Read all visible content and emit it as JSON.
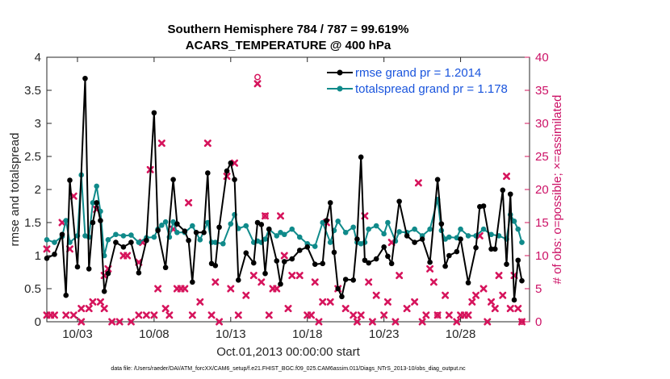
{
  "chart_data": {
    "type": "line",
    "title_line1": "Southern Hemisphere 784 / 787 = 99.619%",
    "title_line2": "ACARS_TEMPERATURE @ 400 hPa",
    "ylabel": "rmse and totalspread",
    "ylabel_right": "# of obs: o=possible; ×=assimilated",
    "xlabel": "Oct.01,2013 00:00:00 start",
    "footnote": "data file: /Users/raeder/DAI/ATM_forcXX/CAM6_setup/f.e21.FHIST_BGC.f09_025.CAM6assim.011/Diags_NTrS_2013-10/obs_diag_output.nc",
    "xlim": [
      1.0,
      32.5
    ],
    "ylim": [
      0,
      4
    ],
    "ylim_right": [
      0,
      40
    ],
    "yticks": [
      0,
      0.5,
      1,
      1.5,
      2,
      2.5,
      3,
      3.5,
      4
    ],
    "yticklabels": [
      "0",
      "0.5",
      "1",
      "1.5",
      "2",
      "2.5",
      "3",
      "3.5",
      "4"
    ],
    "yticks_right": [
      0,
      5,
      10,
      15,
      20,
      25,
      30,
      35,
      40
    ],
    "yticklabels_right": [
      "0",
      "5",
      "10",
      "15",
      "20",
      "25",
      "30",
      "35",
      "40"
    ],
    "xticks": [
      3,
      8,
      13,
      18,
      23,
      28
    ],
    "xticklabels": [
      "10/03",
      "10/08",
      "10/13",
      "10/18",
      "10/23",
      "10/28"
    ],
    "colors": {
      "rmse": "#000000",
      "spread": "#0f8a8a",
      "obs": "#d6145c",
      "legend_text": "#1a55dd"
    },
    "series": [
      {
        "name": "rmse",
        "legend": "rmse grand pr = 1.2014",
        "points": [
          [
            1.0,
            0.96
          ],
          [
            1.5,
            1.02
          ],
          [
            2.0,
            1.32
          ],
          [
            2.25,
            0.4
          ],
          [
            2.5,
            2.14
          ],
          [
            3.0,
            0.83
          ],
          [
            3.5,
            3.68
          ],
          [
            3.75,
            0.8
          ],
          [
            4.0,
            1.5
          ],
          [
            4.25,
            1.8
          ],
          [
            4.5,
            1.53
          ],
          [
            4.75,
            0.46
          ],
          [
            5.0,
            0.73
          ],
          [
            5.5,
            1.2
          ],
          [
            6.0,
            1.13
          ],
          [
            6.5,
            1.2
          ],
          [
            7.0,
            0.74
          ],
          [
            7.5,
            1.23
          ],
          [
            8.0,
            3.16
          ],
          [
            8.25,
            1.38
          ],
          [
            8.75,
            0.82
          ],
          [
            9.25,
            2.15
          ],
          [
            9.5,
            1.48
          ],
          [
            10.0,
            1.37
          ],
          [
            10.25,
            1.23
          ],
          [
            10.5,
            0.6
          ],
          [
            10.75,
            1.35
          ],
          [
            11.25,
            1.35
          ],
          [
            11.5,
            2.25
          ],
          [
            11.75,
            0.88
          ],
          [
            12.0,
            0.85
          ],
          [
            12.25,
            1.43
          ],
          [
            12.75,
            2.28
          ],
          [
            13.0,
            2.4
          ],
          [
            13.25,
            2.15
          ],
          [
            13.5,
            0.63
          ],
          [
            14.0,
            1.04
          ],
          [
            14.5,
            0.89
          ],
          [
            14.75,
            1.5
          ],
          [
            15.0,
            1.47
          ],
          [
            15.25,
            0.73
          ],
          [
            15.5,
            1.4
          ],
          [
            16.0,
            0.92
          ],
          [
            16.25,
            0.57
          ],
          [
            16.5,
            0.91
          ],
          [
            17.0,
            0.95
          ],
          [
            17.5,
            1.08
          ],
          [
            18.0,
            1.13
          ],
          [
            18.5,
            0.87
          ],
          [
            19.0,
            0.88
          ],
          [
            19.25,
            1.53
          ],
          [
            19.5,
            1.8
          ],
          [
            19.75,
            1.05
          ],
          [
            20.0,
            0.5
          ],
          [
            20.25,
            0.38
          ],
          [
            20.5,
            0.64
          ],
          [
            21.0,
            0.63
          ],
          [
            21.25,
            1.25
          ],
          [
            21.5,
            2.49
          ],
          [
            21.75,
            0.93
          ],
          [
            22.0,
            0.89
          ],
          [
            22.5,
            0.95
          ],
          [
            23.0,
            1.13
          ],
          [
            23.25,
            0.99
          ],
          [
            23.5,
            0.88
          ],
          [
            24.0,
            1.82
          ],
          [
            24.5,
            1.3
          ],
          [
            25.0,
            1.2
          ],
          [
            25.5,
            1.25
          ],
          [
            26.0,
            0.9
          ],
          [
            26.5,
            2.15
          ],
          [
            26.75,
            1.48
          ],
          [
            27.0,
            0.84
          ],
          [
            27.25,
            1.0
          ],
          [
            27.75,
            1.06
          ],
          [
            28.0,
            1.25
          ],
          [
            28.5,
            0.59
          ],
          [
            29.0,
            1.12
          ],
          [
            29.25,
            1.74
          ],
          [
            29.5,
            1.75
          ],
          [
            30.0,
            1.1
          ],
          [
            30.25,
            1.1
          ],
          [
            30.75,
            1.99
          ],
          [
            31.0,
            0.87
          ],
          [
            31.25,
            1.93
          ],
          [
            31.5,
            0.33
          ],
          [
            31.75,
            0.93
          ],
          [
            32.0,
            0.62
          ]
        ]
      },
      {
        "name": "totalspread",
        "legend": "totalspread grand pr = 1.178",
        "points": [
          [
            1.0,
            1.24
          ],
          [
            1.5,
            1.2
          ],
          [
            2.0,
            1.29
          ],
          [
            2.25,
            1.53
          ],
          [
            2.5,
            1.2
          ],
          [
            3.0,
            1.3
          ],
          [
            3.25,
            2.22
          ],
          [
            3.5,
            1.3
          ],
          [
            3.75,
            1.28
          ],
          [
            4.0,
            1.8
          ],
          [
            4.25,
            2.05
          ],
          [
            4.5,
            1.67
          ],
          [
            4.75,
            1.0
          ],
          [
            5.0,
            1.24
          ],
          [
            5.5,
            1.32
          ],
          [
            6.0,
            1.3
          ],
          [
            6.5,
            1.31
          ],
          [
            7.0,
            1.2
          ],
          [
            7.5,
            1.27
          ],
          [
            8.0,
            1.28
          ],
          [
            8.25,
            1.4
          ],
          [
            8.5,
            1.46
          ],
          [
            8.75,
            1.51
          ],
          [
            9.0,
            1.28
          ],
          [
            9.25,
            1.51
          ],
          [
            9.5,
            1.35
          ],
          [
            10.0,
            1.35
          ],
          [
            10.5,
            1.45
          ],
          [
            11.0,
            1.24
          ],
          [
            11.5,
            1.5
          ],
          [
            11.75,
            1.2
          ],
          [
            12.0,
            1.2
          ],
          [
            12.5,
            1.18
          ],
          [
            13.0,
            1.48
          ],
          [
            13.25,
            1.62
          ],
          [
            13.5,
            1.41
          ],
          [
            14.0,
            1.45
          ],
          [
            14.5,
            1.2
          ],
          [
            14.75,
            1.22
          ],
          [
            15.0,
            1.2
          ],
          [
            15.25,
            1.25
          ],
          [
            15.5,
            1.4
          ],
          [
            16.0,
            1.3
          ],
          [
            16.25,
            1.35
          ],
          [
            16.5,
            1.32
          ],
          [
            17.0,
            1.4
          ],
          [
            17.5,
            1.28
          ],
          [
            18.0,
            1.18
          ],
          [
            18.5,
            1.14
          ],
          [
            19.0,
            1.5
          ],
          [
            19.5,
            1.2
          ],
          [
            19.75,
            1.38
          ],
          [
            20.0,
            1.52
          ],
          [
            20.5,
            1.35
          ],
          [
            21.0,
            1.43
          ],
          [
            21.25,
            1.2
          ],
          [
            21.5,
            1.18
          ],
          [
            21.75,
            1.2
          ],
          [
            22.0,
            1.4
          ],
          [
            22.5,
            1.45
          ],
          [
            23.0,
            1.33
          ],
          [
            23.25,
            1.5
          ],
          [
            23.75,
            1.22
          ],
          [
            24.0,
            1.36
          ],
          [
            24.5,
            1.35
          ],
          [
            25.0,
            1.4
          ],
          [
            25.5,
            1.3
          ],
          [
            26.0,
            1.4
          ],
          [
            26.5,
            1.85
          ],
          [
            26.75,
            1.38
          ],
          [
            27.0,
            1.25
          ],
          [
            27.25,
            1.28
          ],
          [
            27.75,
            1.27
          ],
          [
            28.0,
            1.4
          ],
          [
            28.5,
            1.3
          ],
          [
            29.0,
            1.3
          ],
          [
            29.5,
            1.4
          ],
          [
            30.0,
            1.32
          ],
          [
            30.5,
            1.3
          ],
          [
            31.0,
            1.25
          ],
          [
            31.25,
            1.62
          ],
          [
            31.5,
            1.52
          ],
          [
            31.75,
            1.4
          ],
          [
            32.0,
            1.2
          ]
        ]
      },
      {
        "name": "obs_assimilated",
        "axis": "right",
        "marker": "x",
        "points": [
          [
            1.0,
            11
          ],
          [
            1.0,
            1
          ],
          [
            1.25,
            1
          ],
          [
            1.5,
            1
          ],
          [
            2.0,
            15
          ],
          [
            2.25,
            1
          ],
          [
            2.5,
            11
          ],
          [
            2.75,
            1
          ],
          [
            2.75,
            19
          ],
          [
            3.25,
            2
          ],
          [
            3.25,
            0
          ],
          [
            3.75,
            2
          ],
          [
            4.0,
            3
          ],
          [
            4.25,
            17
          ],
          [
            4.5,
            3
          ],
          [
            4.75,
            2
          ],
          [
            4.75,
            7
          ],
          [
            5.0,
            8
          ],
          [
            5.25,
            0
          ],
          [
            5.75,
            0
          ],
          [
            6.0,
            10
          ],
          [
            6.25,
            10
          ],
          [
            6.5,
            0
          ],
          [
            7.0,
            9
          ],
          [
            7.0,
            1
          ],
          [
            7.25,
            12
          ],
          [
            7.5,
            1
          ],
          [
            7.75,
            23
          ],
          [
            8.0,
            1
          ],
          [
            8.25,
            5
          ],
          [
            8.5,
            27
          ],
          [
            8.75,
            2
          ],
          [
            9.0,
            1
          ],
          [
            9.25,
            14
          ],
          [
            9.5,
            5
          ],
          [
            9.75,
            5
          ],
          [
            10.0,
            5
          ],
          [
            10.25,
            18
          ],
          [
            10.5,
            1
          ],
          [
            11.0,
            3
          ],
          [
            11.5,
            27
          ],
          [
            11.75,
            1
          ],
          [
            12.0,
            6
          ],
          [
            12.25,
            0
          ],
          [
            12.75,
            22
          ],
          [
            13.0,
            5
          ],
          [
            13.25,
            24
          ],
          [
            13.5,
            1
          ],
          [
            14.0,
            4
          ],
          [
            14.5,
            7
          ],
          [
            14.75,
            36
          ],
          [
            15.0,
            6
          ],
          [
            15.25,
            16
          ],
          [
            15.5,
            1
          ],
          [
            15.75,
            5
          ],
          [
            16.0,
            5
          ],
          [
            16.25,
            16
          ],
          [
            16.5,
            10
          ],
          [
            16.75,
            2
          ],
          [
            17.0,
            7
          ],
          [
            17.5,
            7
          ],
          [
            18.0,
            1
          ],
          [
            18.25,
            1
          ],
          [
            18.5,
            6
          ],
          [
            18.75,
            0
          ],
          [
            19.0,
            3
          ],
          [
            19.25,
            15
          ],
          [
            19.5,
            3
          ],
          [
            20.0,
            5
          ],
          [
            20.5,
            2
          ],
          [
            21.0,
            1
          ],
          [
            21.25,
            0
          ],
          [
            21.5,
            1
          ],
          [
            21.75,
            16
          ],
          [
            22.0,
            6
          ],
          [
            22.25,
            0
          ],
          [
            22.5,
            4
          ],
          [
            23.0,
            1
          ],
          [
            23.25,
            3
          ],
          [
            23.5,
            12
          ],
          [
            23.75,
            0
          ],
          [
            24.0,
            7
          ],
          [
            24.5,
            2
          ],
          [
            25.0,
            3
          ],
          [
            25.25,
            21
          ],
          [
            25.5,
            0
          ],
          [
            25.75,
            1
          ],
          [
            26.0,
            8
          ],
          [
            26.25,
            6
          ],
          [
            26.5,
            1
          ],
          [
            27.0,
            4
          ],
          [
            27.25,
            1
          ],
          [
            27.75,
            0
          ],
          [
            28.0,
            1
          ],
          [
            28.25,
            1
          ],
          [
            28.5,
            1
          ],
          [
            28.75,
            3
          ],
          [
            29.0,
            4
          ],
          [
            29.25,
            13
          ],
          [
            29.5,
            5
          ],
          [
            29.75,
            0
          ],
          [
            30.0,
            3
          ],
          [
            30.25,
            2
          ],
          [
            30.5,
            7
          ],
          [
            30.75,
            4
          ],
          [
            31.0,
            22
          ],
          [
            31.25,
            2
          ],
          [
            31.5,
            7
          ],
          [
            31.75,
            2
          ],
          [
            32.0,
            0
          ]
        ]
      },
      {
        "name": "obs_possible",
        "axis": "right",
        "marker": "o",
        "points": [
          [
            14.75,
            37
          ],
          [
            15.25,
            16
          ],
          [
            26.5,
            1
          ],
          [
            32.0,
            0
          ]
        ]
      }
    ]
  }
}
